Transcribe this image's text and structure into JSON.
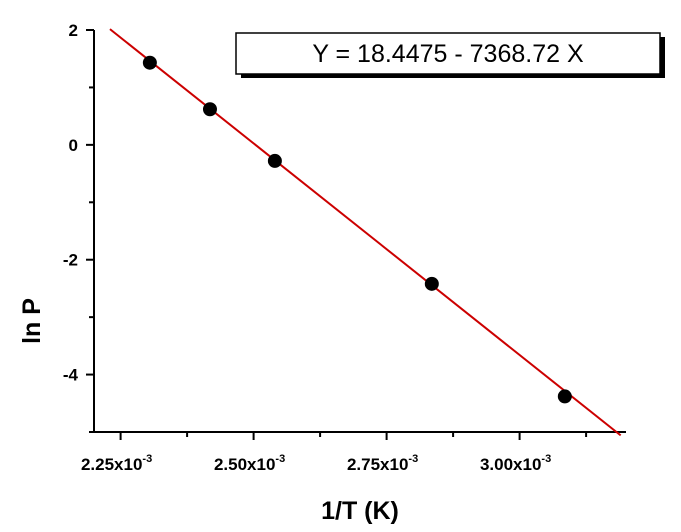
{
  "chart_data": {
    "type": "scatter",
    "xlabel": "1/T (K)",
    "ylabel": "ln P",
    "xlim": [
      0.0022,
      0.0032
    ],
    "ylim": [
      -5,
      2
    ],
    "x_ticks": [
      {
        "value": 0.00225,
        "mantissa": "2.25x10",
        "exponent": "-3"
      },
      {
        "value": 0.0025,
        "mantissa": "2.50x10",
        "exponent": "-3"
      },
      {
        "value": 0.00275,
        "mantissa": "2.75x10",
        "exponent": "-3"
      },
      {
        "value": 0.003,
        "mantissa": "3.00x10",
        "exponent": "-3"
      }
    ],
    "y_ticks": [
      2,
      0,
      -2,
      -4
    ],
    "series": [
      {
        "points": [
          {
            "x": 0.002305,
            "y": 1.43
          },
          {
            "x": 0.002418,
            "y": 0.62
          },
          {
            "x": 0.00254,
            "y": -0.28
          },
          {
            "x": 0.002835,
            "y": -2.42
          },
          {
            "x": 0.003085,
            "y": -4.38
          }
        ]
      }
    ],
    "fit_line": {
      "intercept": 18.4475,
      "slope": -7368.72,
      "x_range": [
        0.00223,
        0.00319
      ],
      "color": "#cc0000"
    },
    "annotation": "Y = 18.4475 - 7368.72 X",
    "grid": false
  }
}
